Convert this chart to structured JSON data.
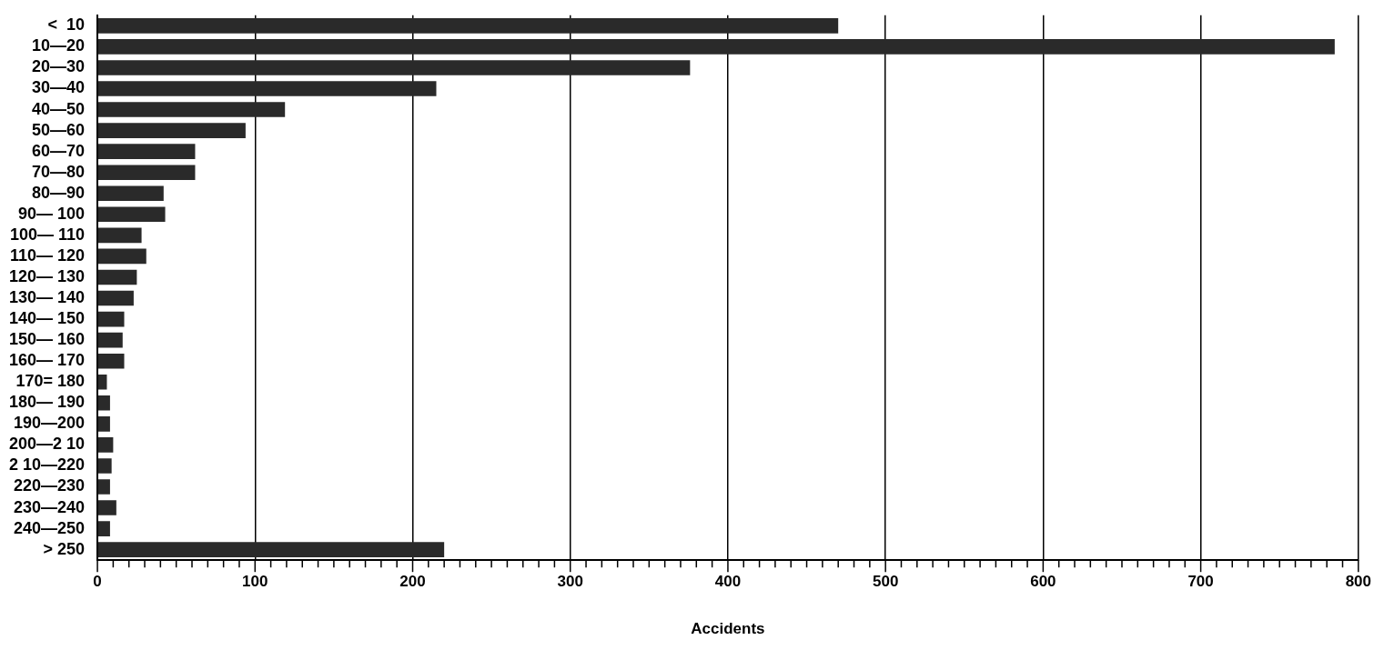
{
  "chart_data": {
    "type": "bar",
    "orientation": "horizontal",
    "xlabel": "Accidents",
    "categories": [
      "<  10",
      "10—20",
      "20—30",
      "30—40",
      "40—50",
      "50—60",
      "60—70",
      "70—80",
      "80—90",
      "90— 100",
      "100— 110",
      "110— 120",
      "120— 130",
      "130— 140",
      "140— 150",
      "150— 160",
      "160— 170",
      "170= 180",
      "180— 190",
      "190—200",
      "200—2 10",
      "2 10—220",
      "220—230",
      "230—240",
      "240—250",
      "> 250"
    ],
    "values": [
      470,
      785,
      376,
      215,
      119,
      94,
      62,
      62,
      42,
      43,
      28,
      31,
      25,
      23,
      17,
      16,
      17,
      6,
      8,
      8,
      10,
      9,
      8,
      12,
      8,
      220
    ],
    "color": "#2a2a2a",
    "xlim": [
      0,
      800
    ],
    "xticks": [
      0,
      {
        "value": 10,
        "label": null
      },
      {
        "value": 20,
        "label": null
      },
      {
        "value": 30,
        "label": null
      },
      {
        "value": 40,
        "label": null
      },
      {
        "value": 50,
        "label": null
      },
      {
        "value": 60,
        "label": null
      },
      {
        "value": 70,
        "label": null
      },
      {
        "value": 80,
        "label": null
      },
      {
        "value": 90,
        "label": null
      },
      100,
      {
        "value": 110,
        "label": null
      },
      {
        "value": 120,
        "label": null
      },
      {
        "value": 130,
        "label": null
      },
      {
        "value": 140,
        "label": null
      },
      {
        "value": 150,
        "label": null
      },
      {
        "value": 160,
        "label": null
      },
      {
        "value": 170,
        "label": null
      },
      {
        "value": 180,
        "label": null
      },
      {
        "value": 190,
        "label": null
      },
      200,
      {
        "value": 210,
        "label": null
      },
      {
        "value": 220,
        "label": null
      },
      {
        "value": 230,
        "label": null
      },
      {
        "value": 240,
        "label": null
      },
      {
        "value": 250,
        "label": null
      },
      {
        "value": 260,
        "label": null
      },
      {
        "value": 270,
        "label": null
      },
      {
        "value": 280,
        "label": null
      },
      {
        "value": 290,
        "label": null
      },
      300,
      {
        "value": 310,
        "label": null
      },
      {
        "value": 320,
        "label": null
      },
      {
        "value": 330,
        "label": null
      },
      {
        "value": 340,
        "label": null
      },
      {
        "value": 350,
        "label": null
      },
      {
        "value": 360,
        "label": null
      },
      {
        "value": 370,
        "label": null
      },
      {
        "value": 380,
        "label": null
      },
      {
        "value": 390,
        "label": null
      },
      400,
      {
        "value": 410,
        "label": null
      },
      {
        "value": 420,
        "label": null
      },
      {
        "value": 430,
        "label": null
      },
      {
        "value": 440,
        "label": null
      },
      {
        "value": 450,
        "label": null
      },
      {
        "value": 460,
        "label": null
      },
      {
        "value": 470,
        "label": null
      },
      {
        "value": 480,
        "label": null
      },
      {
        "value": 490,
        "label": null
      },
      500,
      {
        "value": 510,
        "label": null
      },
      {
        "value": 520,
        "label": null
      },
      {
        "value": 530,
        "label": null
      },
      {
        "value": 540,
        "label": null
      },
      {
        "value": 550,
        "label": null
      },
      {
        "value": 560,
        "label": null
      },
      {
        "value": 570,
        "label": null
      },
      {
        "value": 580,
        "label": null
      },
      {
        "value": 590,
        "label": null
      },
      600,
      {
        "value": 610,
        "label": null
      },
      {
        "value": 620,
        "label": null
      },
      {
        "value": 630,
        "label": null
      },
      {
        "value": 640,
        "label": null
      },
      {
        "value": 650,
        "label": null
      },
      {
        "value": 660,
        "label": null
      },
      {
        "value": 670,
        "label": null
      },
      {
        "value": 680,
        "label": null
      },
      {
        "value": 690,
        "label": null
      },
      700,
      {
        "value": 710,
        "label": null
      },
      {
        "value": 720,
        "label": null
      },
      {
        "value": 730,
        "label": null
      },
      {
        "value": 740,
        "label": null
      },
      {
        "value": 750,
        "label": null
      },
      {
        "value": 760,
        "label": null
      },
      {
        "value": 770,
        "label": null
      },
      {
        "value": 780,
        "label": null
      },
      {
        "value": 790,
        "label": null
      },
      800
    ],
    "grid": "x"
  }
}
